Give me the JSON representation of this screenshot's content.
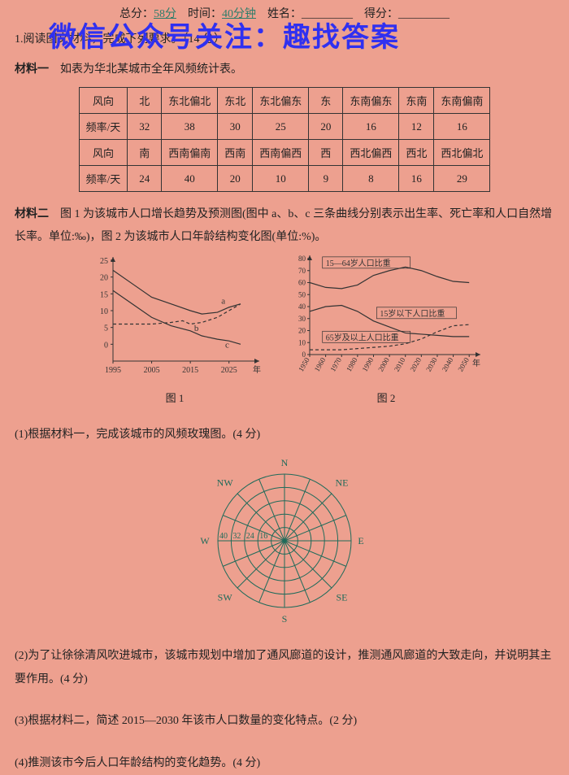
{
  "header": {
    "total_label": "总分：",
    "total_value": "58分",
    "time_label": "时间：",
    "time_value": "40分钟",
    "name_label": "姓名：",
    "name_blank": "_________",
    "score_label": "得分：",
    "score_blank": "_________"
  },
  "watermark": "微信公众号关注：趣找答案",
  "q1_intro": "1.阅读图文材料，完成下列要求。（14 分）",
  "material1_label": "材料一",
  "material1_text": "如表为华北某城市全年风频统计表。",
  "wind_table": {
    "row_headers": [
      "风向",
      "频率/天",
      "风向",
      "频率/天"
    ],
    "row1_dirs": [
      "北",
      "东北偏北",
      "东北",
      "东北偏东",
      "东",
      "东南偏东",
      "东南",
      "东南偏南"
    ],
    "row1_vals": [
      "32",
      "38",
      "30",
      "25",
      "20",
      "16",
      "12",
      "16"
    ],
    "row2_dirs": [
      "南",
      "西南偏南",
      "西南",
      "西南偏西",
      "西",
      "西北偏西",
      "西北",
      "西北偏北"
    ],
    "row2_vals": [
      "24",
      "40",
      "20",
      "10",
      "9",
      "8",
      "16",
      "29"
    ]
  },
  "material2_label": "材料二",
  "material2_text": "图 1 为该城市人口增长趋势及预测图(图中 a、b、c 三条曲线分别表示出生率、死亡率和人口自然增长率。单位:‰)，图 2 为该城市人口年龄结构变化图(单位:%)。",
  "chart1": {
    "ylim": [
      -5,
      25
    ],
    "yticks": [
      0,
      5,
      10,
      15,
      20,
      25
    ],
    "xlim": [
      1995,
      2030
    ],
    "xticks": [
      "1995",
      "2005",
      "2015",
      "2025"
    ],
    "xlabel_suffix": "年",
    "series": {
      "a": {
        "style": "solid",
        "color": "#333",
        "label": "a",
        "points": [
          [
            1995,
            22
          ],
          [
            2000,
            18
          ],
          [
            2005,
            14
          ],
          [
            2010,
            12
          ],
          [
            2015,
            10
          ],
          [
            2018,
            9
          ],
          [
            2022,
            9.5
          ],
          [
            2025,
            11
          ],
          [
            2028,
            12
          ]
        ]
      },
      "b": {
        "style": "dashed",
        "color": "#333",
        "label": "b",
        "points": [
          [
            1995,
            6
          ],
          [
            2000,
            6
          ],
          [
            2005,
            6
          ],
          [
            2010,
            6.5
          ],
          [
            2013,
            7
          ],
          [
            2015,
            6
          ],
          [
            2018,
            6.5
          ],
          [
            2022,
            8
          ],
          [
            2025,
            10
          ],
          [
            2028,
            12
          ]
        ]
      },
      "c": {
        "style": "solid",
        "color": "#333",
        "label": "c",
        "points": [
          [
            1995,
            16
          ],
          [
            2000,
            12
          ],
          [
            2005,
            8
          ],
          [
            2010,
            5.5
          ],
          [
            2015,
            4
          ],
          [
            2018,
            2.5
          ],
          [
            2022,
            1.5
          ],
          [
            2025,
            1
          ],
          [
            2028,
            0
          ]
        ]
      }
    },
    "caption": "图 1"
  },
  "chart2": {
    "ylim": [
      0,
      80
    ],
    "yticks": [
      0,
      10,
      20,
      30,
      40,
      50,
      60,
      70,
      80
    ],
    "xlim": [
      1950,
      2055
    ],
    "xticks": [
      "1950",
      "1960",
      "1970",
      "1980",
      "1990",
      "2000",
      "2010",
      "2020",
      "2030",
      "2040",
      "2050"
    ],
    "xlabel_suffix": "年",
    "series": {
      "top": {
        "label": "15—64岁人口比重",
        "style": "solid",
        "points": [
          [
            1950,
            60
          ],
          [
            1960,
            56
          ],
          [
            1970,
            55
          ],
          [
            1980,
            58
          ],
          [
            1990,
            66
          ],
          [
            2000,
            70
          ],
          [
            2010,
            73
          ],
          [
            2020,
            70
          ],
          [
            2030,
            65
          ],
          [
            2040,
            61
          ],
          [
            2050,
            60
          ]
        ]
      },
      "mid": {
        "label": "15岁以下人口比重",
        "style": "solid",
        "points": [
          [
            1950,
            36
          ],
          [
            1960,
            40
          ],
          [
            1970,
            41
          ],
          [
            1980,
            36
          ],
          [
            1990,
            28
          ],
          [
            2000,
            23
          ],
          [
            2010,
            18
          ],
          [
            2020,
            17
          ],
          [
            2030,
            16
          ],
          [
            2040,
            15
          ],
          [
            2050,
            15
          ]
        ]
      },
      "bot": {
        "label": "65岁及以上人口比重",
        "style": "dashed",
        "points": [
          [
            1950,
            4
          ],
          [
            1960,
            4
          ],
          [
            1970,
            4
          ],
          [
            1980,
            5
          ],
          [
            1990,
            6
          ],
          [
            2000,
            7
          ],
          [
            2010,
            9
          ],
          [
            2020,
            13
          ],
          [
            2030,
            19
          ],
          [
            2040,
            24
          ],
          [
            2050,
            25
          ]
        ]
      }
    },
    "caption": "图 2"
  },
  "subq1": "(1)根据材料一，完成该城市的风频玫瑰图。(4 分)",
  "rose": {
    "radii_labels": [
      "16",
      "24",
      "32",
      "40"
    ],
    "dir_labels": {
      "N": "N",
      "NE": "NE",
      "E": "E",
      "SE": "SE",
      "S": "S",
      "SW": "SW",
      "W": "W",
      "NW": "NW"
    },
    "ring_count": 5,
    "spoke_count": 16,
    "color": "#1f6b5a"
  },
  "subq2": "(2)为了让徐徐清风吹进城市，该城市规划中增加了通风廊道的设计，推测通风廊道的大致走向，并说明其主要作用。(4 分)",
  "subq3": "(3)根据材料二，简述 2015—2030 年该市人口数量的变化特点。(2 分)",
  "subq4": "(4)推测该市今后人口年龄结构的变化趋势。(4 分)",
  "colors": {
    "background": "#eda08f",
    "text": "#222222",
    "axis": "#333333",
    "rose": "#1f6b5a",
    "watermark": "#3030f0"
  }
}
